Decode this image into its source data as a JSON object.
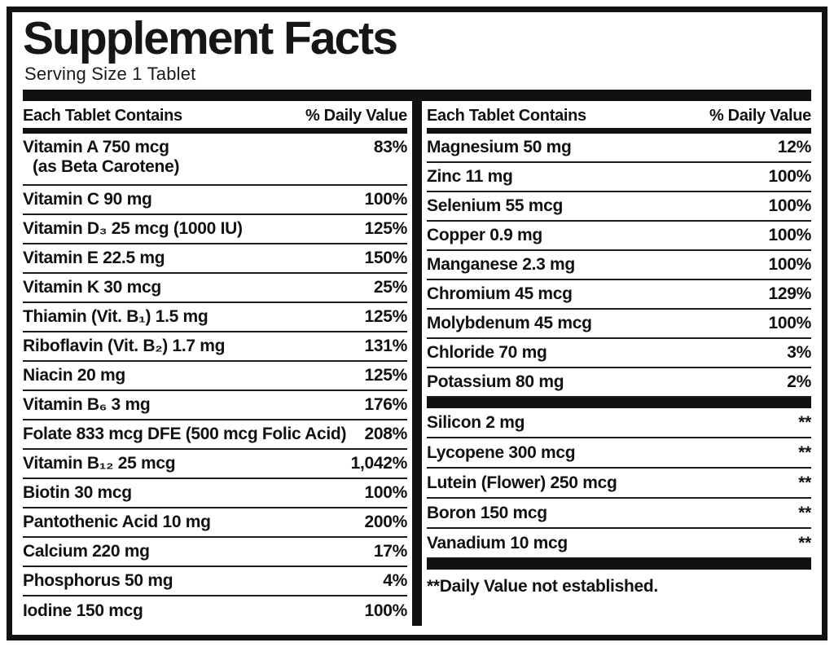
{
  "colors": {
    "ink": "#111111",
    "paper": "#ffffff"
  },
  "title": "Supplement Facts",
  "serving_size": "Serving Size 1 Tablet",
  "left": {
    "header_name": "Each Tablet Contains",
    "header_value": "% Daily Value",
    "rows": [
      {
        "name": "Vitamin A 750 mcg",
        "name2": "(as Beta Carotene)",
        "value": "83%"
      },
      {
        "name": "Vitamin C 90 mg",
        "value": "100%"
      },
      {
        "name": "Vitamin D₃ 25 mcg (1000 IU)",
        "value": "125%"
      },
      {
        "name": "Vitamin E 22.5 mg",
        "value": "150%"
      },
      {
        "name": "Vitamin K 30 mcg",
        "value": "25%"
      },
      {
        "name": "Thiamin (Vit. B₁) 1.5 mg",
        "value": "125%"
      },
      {
        "name": "Riboflavin (Vit. B₂) 1.7 mg",
        "value": "131%"
      },
      {
        "name": "Niacin 20 mg",
        "value": "125%"
      },
      {
        "name": "Vitamin B₆ 3 mg",
        "value": "176%"
      },
      {
        "name": "Folate 833 mcg DFE (500 mcg Folic Acid)",
        "value": "208%"
      },
      {
        "name": "Vitamin B₁₂ 25 mcg",
        "value": "1,042%"
      },
      {
        "name": "Biotin 30 mcg",
        "value": "100%"
      },
      {
        "name": "Pantothenic Acid 10 mg",
        "value": "200%"
      },
      {
        "name": "Calcium 220 mg",
        "value": "17%"
      },
      {
        "name": "Phosphorus 50 mg",
        "value": "4%"
      },
      {
        "name": "Iodine 150 mcg",
        "value": "100%"
      }
    ]
  },
  "right": {
    "header_name": "Each Tablet Contains",
    "header_value": "% Daily Value",
    "rows": [
      {
        "name": "Magnesium 50 mg",
        "value": "12%"
      },
      {
        "name": "Zinc 11 mg",
        "value": "100%"
      },
      {
        "name": "Selenium 55 mcg",
        "value": "100%"
      },
      {
        "name": "Copper 0.9 mg",
        "value": "100%"
      },
      {
        "name": "Manganese 2.3 mg",
        "value": "100%"
      },
      {
        "name": "Chromium 45 mcg",
        "value": "129%"
      },
      {
        "name": "Molybdenum 45 mcg",
        "value": "100%"
      },
      {
        "name": "Chloride 70 mg",
        "value": "3%"
      },
      {
        "name": "Potassium 80 mg",
        "value": "2%"
      }
    ],
    "rows_no_dv": [
      {
        "name": "Silicon 2 mg",
        "value": "**"
      },
      {
        "name": "Lycopene 300 mcg",
        "value": "**"
      },
      {
        "name": "Lutein (Flower) 250 mcg",
        "value": "**"
      },
      {
        "name": "Boron 150 mcg",
        "value": "**"
      },
      {
        "name": "Vanadium 10 mcg",
        "value": "**"
      }
    ],
    "footnote": "**Daily Value not established."
  }
}
